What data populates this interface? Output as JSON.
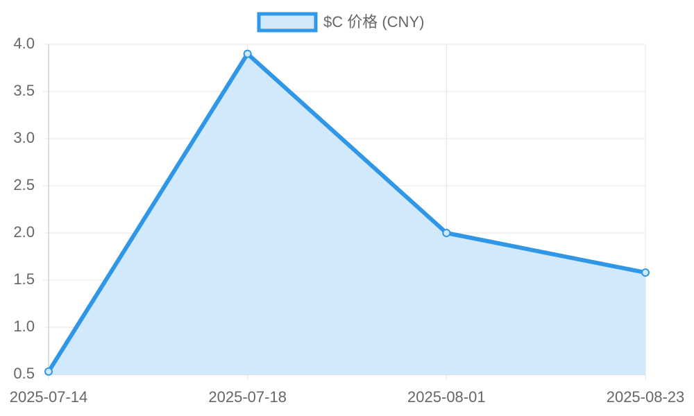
{
  "chart_data": {
    "type": "line",
    "categories": [
      "2025-07-14",
      "2025-07-18",
      "2025-08-01",
      "2025-08-23"
    ],
    "series": [
      {
        "name": "$C 价格 (CNY)",
        "color": "#2f97e6",
        "fill": "#d2e8fb",
        "values": [
          0.53,
          3.9,
          2.0,
          1.58
        ]
      }
    ],
    "ylim": [
      0.5,
      4.0
    ],
    "yticks": [
      0.5,
      {
        "value": 1,
        "label": "1.0"
      },
      1.5,
      {
        "value": 2,
        "label": "2.0"
      },
      2.5,
      {
        "value": 3,
        "label": "3.0"
      },
      3.5,
      {
        "value": 4,
        "label": "4.0"
      }
    ],
    "grid": true,
    "legend": "top"
  }
}
